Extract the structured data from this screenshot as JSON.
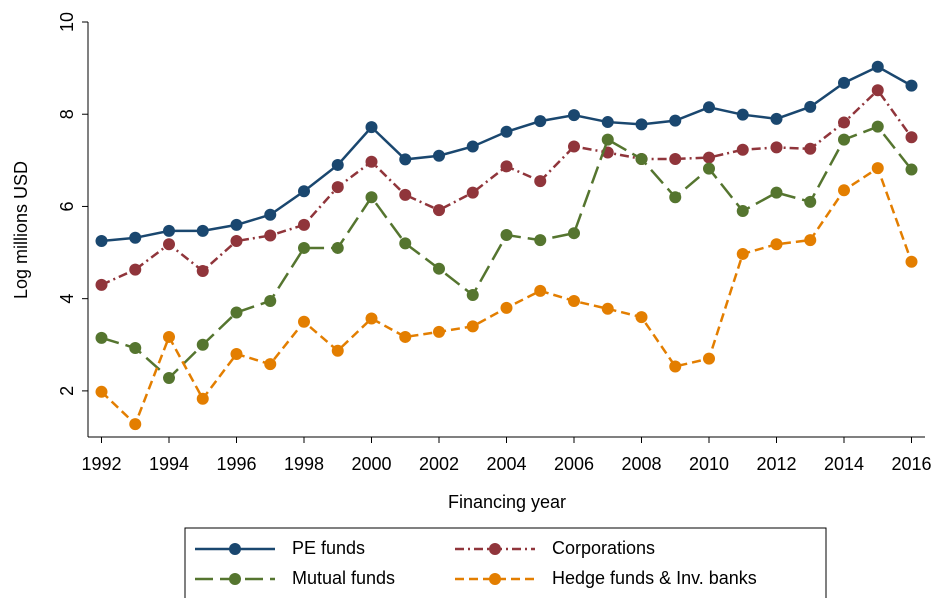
{
  "chart_data": {
    "type": "line",
    "x_label": "Financing year",
    "y_label": "Log millions USD",
    "x": [
      1992,
      1993,
      1994,
      1995,
      1996,
      1997,
      1998,
      1999,
      2000,
      2001,
      2002,
      2003,
      2004,
      2005,
      2006,
      2007,
      2008,
      2009,
      2010,
      2011,
      2012,
      2013,
      2014,
      2015,
      2016
    ],
    "series": [
      {
        "name": "PE funds",
        "color": "#1a476f",
        "dash": "solid",
        "values": [
          5.25,
          5.32,
          5.47,
          5.47,
          5.6,
          5.82,
          6.33,
          6.9,
          7.72,
          7.02,
          7.1,
          7.3,
          7.62,
          7.85,
          7.98,
          7.83,
          7.78,
          7.86,
          8.15,
          7.99,
          7.9,
          8.16,
          8.68,
          9.03,
          8.62
        ]
      },
      {
        "name": "Corporations",
        "color": "#90353b",
        "dash": "dash-dot",
        "values": [
          4.3,
          4.63,
          5.18,
          4.6,
          5.25,
          5.37,
          5.6,
          6.42,
          6.97,
          6.25,
          5.92,
          6.3,
          6.87,
          6.55,
          7.3,
          7.17,
          7.03,
          7.03,
          7.06,
          7.23,
          7.28,
          7.25,
          7.82,
          8.52,
          7.5
        ]
      },
      {
        "name": "Mutual funds",
        "color": "#55752f",
        "dash": "long-dash",
        "values": [
          3.15,
          2.93,
          2.28,
          3.0,
          3.7,
          3.95,
          5.1,
          5.1,
          6.2,
          5.2,
          4.65,
          4.08,
          5.38,
          5.27,
          5.42,
          7.45,
          7.03,
          6.2,
          6.82,
          5.9,
          6.3,
          6.1,
          7.45,
          7.73,
          6.8
        ]
      },
      {
        "name": "Hedge funds & Inv. banks",
        "color": "#e37e00",
        "dash": "dash",
        "values": [
          1.98,
          1.28,
          3.17,
          1.83,
          2.8,
          2.58,
          3.5,
          2.87,
          3.57,
          3.17,
          3.28,
          3.4,
          3.8,
          4.17,
          3.95,
          3.78,
          3.6,
          2.53,
          2.7,
          4.97,
          5.18,
          5.27,
          6.35,
          6.83,
          4.8
        ]
      }
    ],
    "xlim": [
      1991.6,
      2016.4
    ],
    "xticks": [
      1992,
      1994,
      1996,
      1998,
      2000,
      2002,
      2004,
      2006,
      2008,
      2010,
      2012,
      2014,
      2016
    ],
    "ylim": [
      1,
      10
    ],
    "yticks": [
      2,
      4,
      6,
      8,
      10
    ],
    "grid": false,
    "legend": "bottom"
  }
}
